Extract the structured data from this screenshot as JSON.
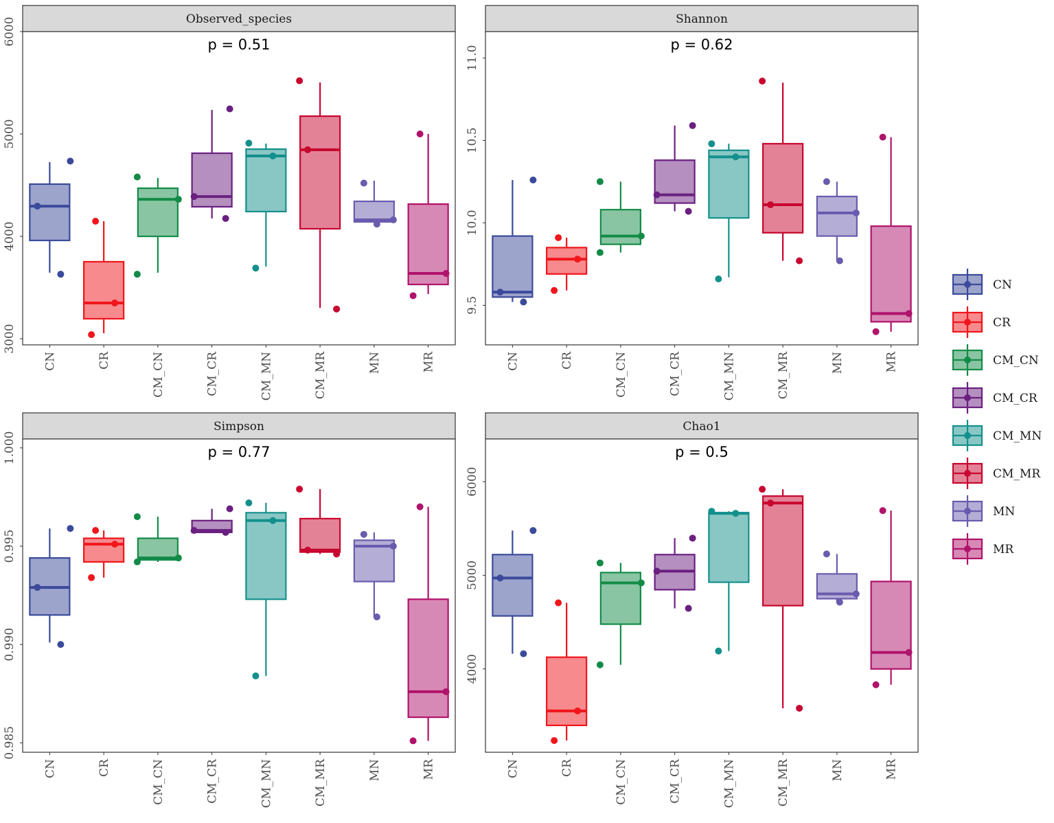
{
  "chart_data": {
    "type": "boxplot",
    "categories": [
      "CN",
      "CR",
      "CM_CN",
      "CM_CR",
      "CM_MN",
      "CM_MR",
      "MN",
      "MR"
    ],
    "colors": {
      "CN": "#3B4A9A",
      "CR": "#F0161C",
      "CM_CN": "#138B48",
      "CM_CR": "#6A2080",
      "CM_MN": "#13908C",
      "CM_MR": "#C8062F",
      "MN": "#6A5BAE",
      "MR": "#B0136B"
    },
    "legend": {
      "position": "right",
      "entries": [
        "CN",
        "CR",
        "CM_CN",
        "CM_CR",
        "CM_MN",
        "CM_MR",
        "MN",
        "MR"
      ]
    },
    "facets": [
      {
        "title": "Observed_species",
        "pvalue": "p = 0.51",
        "ylim": [
          2940,
          6000
        ],
        "yticks": [
          3000,
          4000,
          5000,
          6000
        ],
        "ytick_labels": [
          "3000",
          "4000",
          "5000",
          "6000"
        ],
        "boxes": [
          {
            "low": 3645,
            "q1": 3960,
            "median": 4295,
            "q3": 4510,
            "high": 4725,
            "points": [
              3630,
              4295,
              4735
            ]
          },
          {
            "low": 3054,
            "q1": 3195,
            "median": 3349,
            "q3": 3752,
            "high": 4148,
            "points": [
              3040,
              3349,
              4148
            ]
          },
          {
            "low": 3645,
            "q1": 4000,
            "median": 4362,
            "q3": 4470,
            "high": 4570,
            "points": [
              3630,
              4362,
              4580
            ]
          },
          {
            "low": 4175,
            "q1": 4289,
            "median": 4389,
            "q3": 4812,
            "high": 5235,
            "points": [
              4175,
              4389,
              5245
            ]
          },
          {
            "low": 3705,
            "q1": 4242,
            "median": 4785,
            "q3": 4852,
            "high": 4906,
            "points": [
              3690,
              4785,
              4910
            ]
          },
          {
            "low": 3302,
            "q1": 4074,
            "median": 4846,
            "q3": 5174,
            "high": 5503,
            "points": [
              3290,
              4846,
              5520
            ]
          },
          {
            "low": 4141,
            "q1": 4141,
            "median": 4161,
            "q3": 4342,
            "high": 4544,
            "points": [
              4120,
              4161,
              4520
            ]
          },
          {
            "low": 3436,
            "q1": 3530,
            "median": 3638,
            "q3": 4315,
            "high": 5000,
            "points": [
              3420,
              3638,
              5000
            ]
          }
        ]
      },
      {
        "title": "Shannon",
        "pvalue": "p = 0.62",
        "ylim": [
          9.26,
          11.16
        ],
        "yticks": [
          9.5,
          10,
          10.5,
          11
        ],
        "ytick_labels": [
          "9.5",
          "10.0",
          "10.5",
          "11.0"
        ],
        "boxes": [
          {
            "low": 9.52,
            "q1": 9.55,
            "median": 9.58,
            "q3": 9.92,
            "high": 10.26,
            "points": [
              9.52,
              9.58,
              10.26
            ]
          },
          {
            "low": 9.59,
            "q1": 9.69,
            "median": 9.78,
            "q3": 9.85,
            "high": 9.91,
            "points": [
              9.59,
              9.78,
              9.91
            ]
          },
          {
            "low": 9.82,
            "q1": 9.87,
            "median": 9.92,
            "q3": 10.08,
            "high": 10.25,
            "points": [
              9.82,
              9.92,
              10.25
            ]
          },
          {
            "low": 10.07,
            "q1": 10.12,
            "median": 10.17,
            "q3": 10.38,
            "high": 10.59,
            "points": [
              10.07,
              10.17,
              10.59
            ]
          },
          {
            "low": 9.67,
            "q1": 10.03,
            "median": 10.4,
            "q3": 10.44,
            "high": 10.48,
            "points": [
              9.66,
              10.4,
              10.48
            ]
          },
          {
            "low": 9.77,
            "q1": 9.94,
            "median": 10.11,
            "q3": 10.48,
            "high": 10.85,
            "points": [
              9.77,
              10.11,
              10.86
            ]
          },
          {
            "low": 9.77,
            "q1": 9.92,
            "median": 10.06,
            "q3": 10.16,
            "high": 10.25,
            "points": [
              9.77,
              10.06,
              10.25
            ]
          },
          {
            "low": 9.34,
            "q1": 9.4,
            "median": 9.45,
            "q3": 9.98,
            "high": 10.52,
            "points": [
              9.34,
              9.45,
              10.52
            ]
          }
        ]
      },
      {
        "title": "Simpson",
        "pvalue": "p = 0.77",
        "ylim": [
          0.98452,
          1.00045
        ],
        "yticks": [
          0.985,
          0.99,
          0.995,
          1.0
        ],
        "ytick_labels": [
          "0.985",
          "0.990",
          "0.995",
          "1.000"
        ],
        "boxes": [
          {
            "low": 0.9901,
            "q1": 0.9915,
            "median": 0.9929,
            "q3": 0.9944,
            "high": 0.9959,
            "points": [
              0.99,
              0.9929,
              0.9959
            ]
          },
          {
            "low": 0.9934,
            "q1": 0.9942,
            "median": 0.9951,
            "q3": 0.9954,
            "high": 0.9958,
            "points": [
              0.9934,
              0.9951,
              0.9958
            ]
          },
          {
            "low": 0.9942,
            "q1": 0.9943,
            "median": 0.9944,
            "q3": 0.9954,
            "high": 0.9965,
            "points": [
              0.9942,
              0.9944,
              0.9965
            ]
          },
          {
            "low": 0.9957,
            "q1": 0.9957,
            "median": 0.9958,
            "q3": 0.9963,
            "high": 0.9969,
            "points": [
              0.9957,
              0.9958,
              0.9969
            ]
          },
          {
            "low": 0.9884,
            "q1": 0.9923,
            "median": 0.9963,
            "q3": 0.9967,
            "high": 0.9972,
            "points": [
              0.9884,
              0.9963,
              0.9972
            ]
          },
          {
            "low": 0.9946,
            "q1": 0.9947,
            "median": 0.9948,
            "q3": 0.9964,
            "high": 0.9979,
            "points": [
              0.9946,
              0.9948,
              0.9979
            ]
          },
          {
            "low": 0.9914,
            "q1": 0.9932,
            "median": 0.995,
            "q3": 0.9953,
            "high": 0.9957,
            "points": [
              0.9914,
              0.995,
              0.9956
            ]
          },
          {
            "low": 0.9851,
            "q1": 0.9863,
            "median": 0.9876,
            "q3": 0.9923,
            "high": 0.997,
            "points": [
              0.9851,
              0.9876,
              0.997
            ]
          }
        ]
      },
      {
        "title": "Chao1",
        "pvalue": "p = 0.5",
        "ylim": [
          3110,
          6456
        ],
        "yticks": [
          4000,
          5000,
          6000
        ],
        "ytick_labels": [
          "4000",
          "5000",
          "6000"
        ],
        "boxes": [
          {
            "low": 4162,
            "q1": 4566,
            "median": 4971,
            "q3": 5221,
            "high": 5478,
            "points": [
              4162,
              4971,
              5478
            ]
          },
          {
            "low": 3235,
            "q1": 3397,
            "median": 3551,
            "q3": 4125,
            "high": 4706,
            "points": [
              3235,
              3551,
              4706
            ]
          },
          {
            "low": 4044,
            "q1": 4478,
            "median": 4919,
            "q3": 5029,
            "high": 5132,
            "points": [
              4044,
              4919,
              5132
            ]
          },
          {
            "low": 4647,
            "q1": 4846,
            "median": 5044,
            "q3": 5221,
            "high": 5397,
            "points": [
              4647,
              5044,
              5397
            ]
          },
          {
            "low": 4191,
            "q1": 4926,
            "median": 5662,
            "q3": 5669,
            "high": 5684,
            "points": [
              4191,
              5662,
              5684
            ]
          },
          {
            "low": 3580,
            "q1": 4676,
            "median": 5772,
            "q3": 5846,
            "high": 5919,
            "points": [
              3580,
              5772,
              5919
            ]
          },
          {
            "low": 4713,
            "q1": 4750,
            "median": 4801,
            "q3": 5015,
            "high": 5228,
            "points": [
              4713,
              4801,
              5228
            ]
          },
          {
            "low": 3831,
            "q1": 4000,
            "median": 4176,
            "q3": 4934,
            "high": 5691,
            "points": [
              3831,
              4176,
              5691
            ]
          }
        ]
      }
    ]
  }
}
